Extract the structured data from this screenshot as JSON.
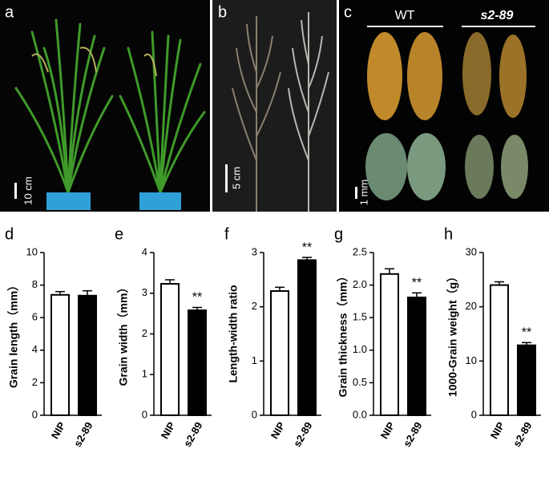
{
  "photo_panels": [
    {
      "label": "a",
      "scale": "10 cm"
    },
    {
      "label": "b",
      "scale": "5 cm"
    },
    {
      "label": "c",
      "scale": "1 mm",
      "groups": [
        "WT",
        "s2-89"
      ]
    }
  ],
  "chart_data": [
    {
      "type": "bar",
      "panel": "d",
      "ylabel": "Grain length（mm）",
      "categories": [
        "NIP",
        "s2-89"
      ],
      "values": [
        7.4,
        7.35
      ],
      "errors": [
        0.2,
        0.3
      ],
      "colors": [
        "#ffffff",
        "#000000"
      ],
      "ylim": [
        0,
        10
      ],
      "yticks": [
        0,
        2,
        4,
        6,
        8,
        10
      ]
    },
    {
      "type": "bar",
      "panel": "e",
      "ylabel": "Grain width（mm）",
      "categories": [
        "NIP",
        "s2-89"
      ],
      "values": [
        3.23,
        2.58
      ],
      "errors": [
        0.1,
        0.07
      ],
      "colors": [
        "#ffffff",
        "#000000"
      ],
      "annotation": "**",
      "ylim": [
        0,
        4
      ],
      "yticks": [
        0,
        1,
        2,
        3,
        4
      ]
    },
    {
      "type": "bar",
      "panel": "f",
      "ylabel": "Length-width ratio",
      "categories": [
        "NIP",
        "s2-89"
      ],
      "values": [
        2.29,
        2.86
      ],
      "errors": [
        0.07,
        0.05
      ],
      "colors": [
        "#ffffff",
        "#000000"
      ],
      "annotation": "**",
      "ylim": [
        0,
        3
      ],
      "yticks": [
        0,
        1,
        2,
        3
      ]
    },
    {
      "type": "bar",
      "panel": "g",
      "ylabel": "Grain thickness（mm）",
      "categories": [
        "NIP",
        "s2-89"
      ],
      "values": [
        2.17,
        1.81
      ],
      "errors": [
        0.08,
        0.07
      ],
      "colors": [
        "#ffffff",
        "#000000"
      ],
      "annotation": "**",
      "ylim": [
        0,
        2.5
      ],
      "yticks": [
        {
          "value": 0,
          "label": "0.0"
        },
        0.5,
        {
          "value": 1,
          "label": "1.0"
        },
        1.5,
        {
          "value": 2,
          "label": "2.0"
        },
        2.5
      ]
    },
    {
      "type": "bar",
      "panel": "h",
      "ylabel": "1000-Grain weight（g）",
      "categories": [
        "NIP",
        "s2-89"
      ],
      "values": [
        24,
        12.9
      ],
      "errors": [
        0.6,
        0.5
      ],
      "colors": [
        "#ffffff",
        "#000000"
      ],
      "annotation": "**",
      "ylim": [
        0,
        30
      ],
      "yticks": [
        0,
        10,
        20,
        30
      ]
    }
  ]
}
